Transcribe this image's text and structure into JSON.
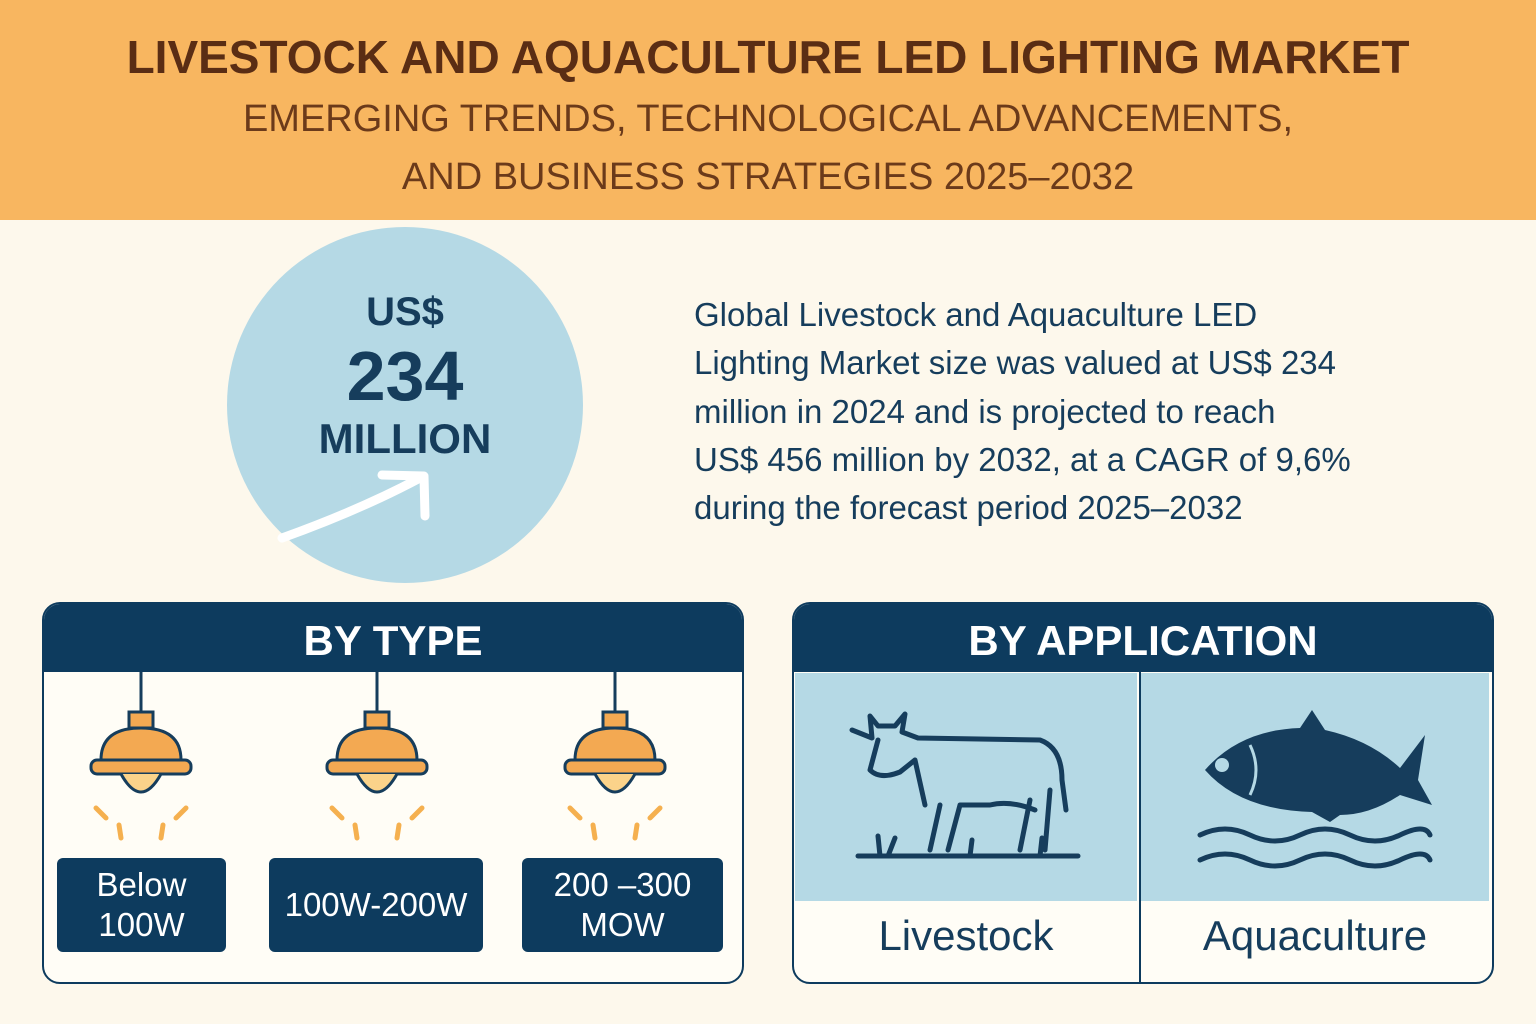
{
  "header": {
    "title": "LIVESTOCK AND AQUACULTURE LED LIGHTING MARKET",
    "subtitle_lines": [
      "EMERGING TRENDS, TECHNOLOGICAL ADVANCEMENTS,",
      "AND BUSINESS STRATEGIES 2025–2032"
    ]
  },
  "badge": {
    "currency": "US$",
    "amount": "234",
    "unit": "MILLION"
  },
  "description_lines": [
    "Global Livestock and Aquaculture LED",
    "Lighting Market size was valued at US$ 234",
    "million in 2024 and is projected to reach",
    "US$ 456 million by 2032, at a CAGR of 9,6%",
    "during the forecast period 2025–2032"
  ],
  "by_type": {
    "title": "BY TYPE",
    "items": [
      [
        "Below",
        "100W"
      ],
      [
        "100W-200W"
      ],
      [
        "200 –300",
        "MOW"
      ]
    ]
  },
  "by_application": {
    "title": "BY APPLICATION",
    "items": [
      "Livestock",
      "Aquaculture"
    ]
  }
}
